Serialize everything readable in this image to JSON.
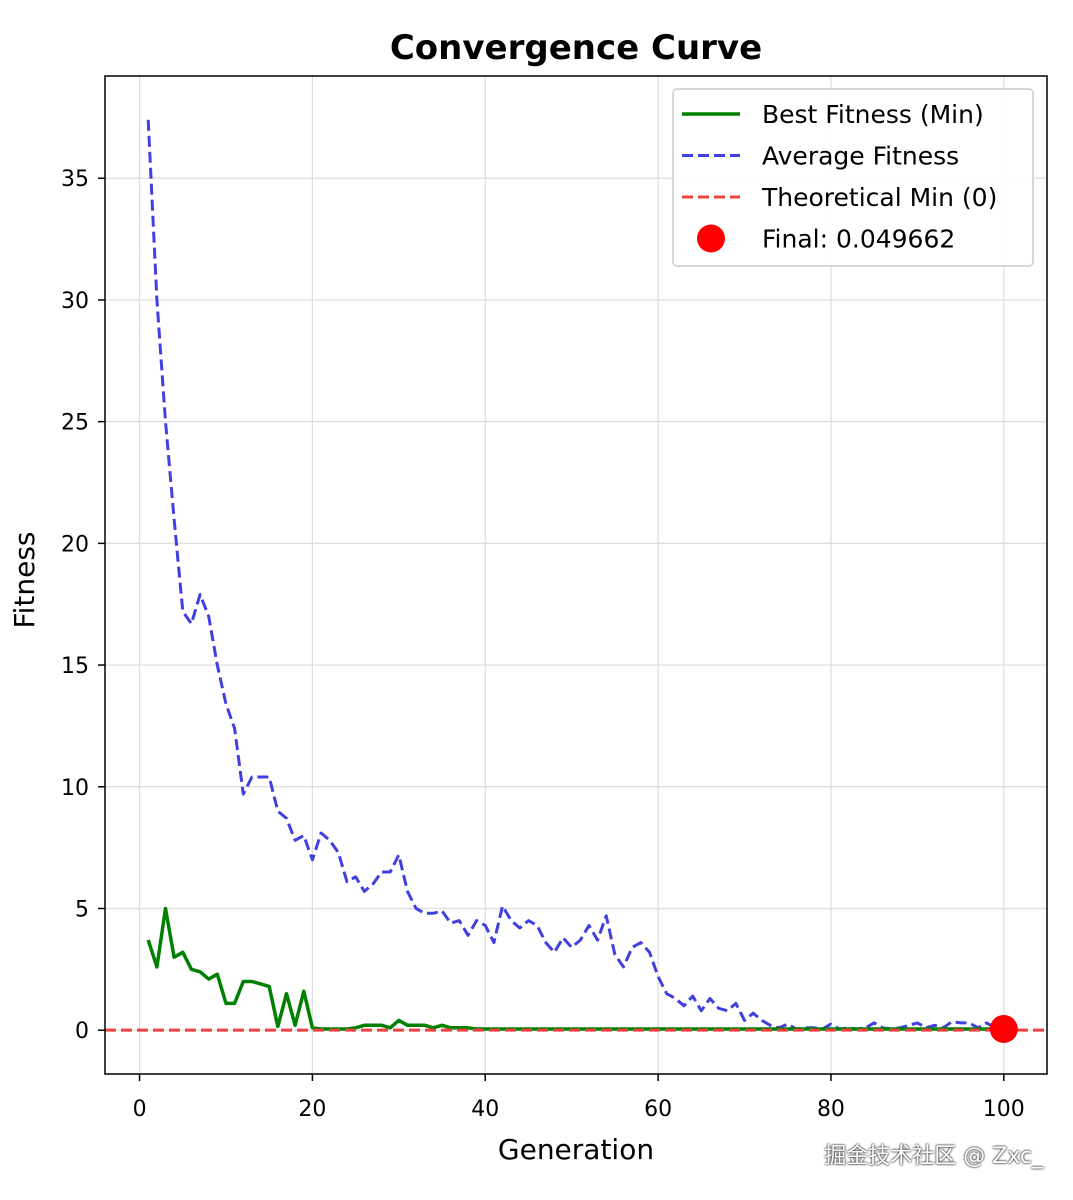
{
  "chart_data": {
    "type": "line",
    "title": "Convergence Curve",
    "xlabel": "Generation",
    "ylabel": "Fitness",
    "xlim": [
      -4,
      105
    ],
    "ylim": [
      -1.8,
      39.2
    ],
    "xticks": [
      0,
      20,
      40,
      60,
      80,
      100
    ],
    "yticks": [
      0,
      5,
      10,
      15,
      20,
      25,
      30,
      35
    ],
    "grid": true,
    "legend_position": "top-right",
    "series": [
      {
        "name": "Best Fitness (Min)",
        "style": "solid",
        "color": "#008000",
        "x": [
          1,
          2,
          3,
          4,
          5,
          6,
          7,
          8,
          9,
          10,
          11,
          12,
          13,
          14,
          15,
          16,
          17,
          18,
          19,
          20,
          21,
          22,
          23,
          24,
          25,
          26,
          27,
          28,
          29,
          30,
          31,
          32,
          33,
          34,
          35,
          36,
          37,
          38,
          39,
          40,
          41,
          42,
          43,
          44,
          45,
          46,
          47,
          48,
          49,
          50,
          51,
          52,
          53,
          54,
          55,
          56,
          57,
          58,
          59,
          60,
          61,
          62,
          63,
          64,
          65,
          66,
          67,
          68,
          69,
          70,
          71,
          72,
          73,
          74,
          75,
          76,
          77,
          78,
          79,
          80,
          81,
          82,
          83,
          84,
          85,
          86,
          87,
          88,
          89,
          90,
          91,
          92,
          93,
          94,
          95,
          96,
          97,
          98,
          99,
          100
        ],
        "y": [
          3.7,
          2.6,
          5.0,
          3.0,
          3.2,
          2.5,
          2.4,
          2.1,
          2.3,
          1.1,
          1.1,
          2.0,
          2.0,
          1.9,
          1.8,
          0.15,
          1.5,
          0.2,
          1.6,
          0.1,
          0.05,
          0.05,
          0.05,
          0.05,
          0.1,
          0.2,
          0.2,
          0.2,
          0.1,
          0.4,
          0.2,
          0.2,
          0.2,
          0.1,
          0.2,
          0.1,
          0.1,
          0.1,
          0.05,
          0.05,
          0.05,
          0.05,
          0.05,
          0.05,
          0.05,
          0.05,
          0.05,
          0.05,
          0.05,
          0.05,
          0.05,
          0.05,
          0.05,
          0.05,
          0.05,
          0.05,
          0.05,
          0.05,
          0.05,
          0.05,
          0.05,
          0.05,
          0.05,
          0.05,
          0.05,
          0.05,
          0.05,
          0.05,
          0.05,
          0.05,
          0.05,
          0.05,
          0.05,
          0.05,
          0.05,
          0.05,
          0.05,
          0.05,
          0.05,
          0.05,
          0.05,
          0.05,
          0.05,
          0.05,
          0.05,
          0.05,
          0.05,
          0.05,
          0.05,
          0.05,
          0.05,
          0.05,
          0.05,
          0.05,
          0.05,
          0.05,
          0.05,
          0.05,
          0.05,
          0.049662
        ]
      },
      {
        "name": "Average Fitness",
        "style": "dashed",
        "color": "#4040e0",
        "x": [
          1,
          2,
          3,
          4,
          5,
          6,
          7,
          8,
          9,
          10,
          11,
          12,
          13,
          14,
          15,
          16,
          17,
          18,
          19,
          20,
          21,
          22,
          23,
          24,
          25,
          26,
          27,
          28,
          29,
          30,
          31,
          32,
          33,
          34,
          35,
          36,
          37,
          38,
          39,
          40,
          41,
          42,
          43,
          44,
          45,
          46,
          47,
          48,
          49,
          50,
          51,
          52,
          53,
          54,
          55,
          56,
          57,
          58,
          59,
          60,
          61,
          62,
          63,
          64,
          65,
          66,
          67,
          68,
          69,
          70,
          71,
          72,
          73,
          74,
          75,
          76,
          77,
          78,
          79,
          80,
          81,
          82,
          83,
          84,
          85,
          86,
          87,
          88,
          89,
          90,
          91,
          92,
          93,
          94,
          95,
          96,
          97,
          98,
          99,
          100
        ],
        "y": [
          37.4,
          30.0,
          25.0,
          21.0,
          17.2,
          16.7,
          17.9,
          17.0,
          15.0,
          13.4,
          12.4,
          9.7,
          10.4,
          10.4,
          10.4,
          9.0,
          8.7,
          7.8,
          8.0,
          7.0,
          8.1,
          7.8,
          7.3,
          6.1,
          6.3,
          5.7,
          6.0,
          6.5,
          6.5,
          7.2,
          5.7,
          5.0,
          4.8,
          4.8,
          4.9,
          4.4,
          4.5,
          3.9,
          4.5,
          4.3,
          3.6,
          5.1,
          4.5,
          4.2,
          4.5,
          4.3,
          3.6,
          3.2,
          3.8,
          3.4,
          3.7,
          4.3,
          3.7,
          4.7,
          3.1,
          2.6,
          3.4,
          3.6,
          3.2,
          2.2,
          1.5,
          1.3,
          1.0,
          1.4,
          0.8,
          1.3,
          0.9,
          0.8,
          1.1,
          0.4,
          0.7,
          0.4,
          0.2,
          0.1,
          0.25,
          0.05,
          0.1,
          0.1,
          0.05,
          0.25,
          0.05,
          0.1,
          0.05,
          0.1,
          0.3,
          0.1,
          0.05,
          0.1,
          0.2,
          0.3,
          0.1,
          0.2,
          0.1,
          0.35,
          0.3,
          0.3,
          0.1,
          0.3,
          0.1,
          0.1
        ]
      },
      {
        "name": "Theoretical Min (0)",
        "style": "dashed",
        "color": "#f04040",
        "y_constant": 0
      },
      {
        "name": "Final: 0.049662",
        "style": "marker",
        "color": "#ff0000",
        "x": [
          100
        ],
        "y": [
          0.049662
        ]
      }
    ]
  },
  "watermark": "掘金技术社区 @ Zxc_"
}
